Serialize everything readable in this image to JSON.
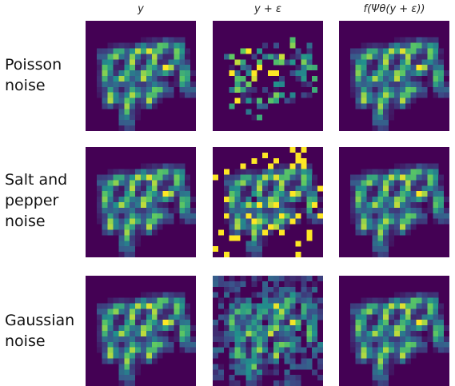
{
  "columns": [
    "y",
    "y + ε",
    "f(Ψθ(y + ε))"
  ],
  "rows": [
    "Poisson noise",
    "Salt and pepper noise",
    "Gaussian noise"
  ]
}
